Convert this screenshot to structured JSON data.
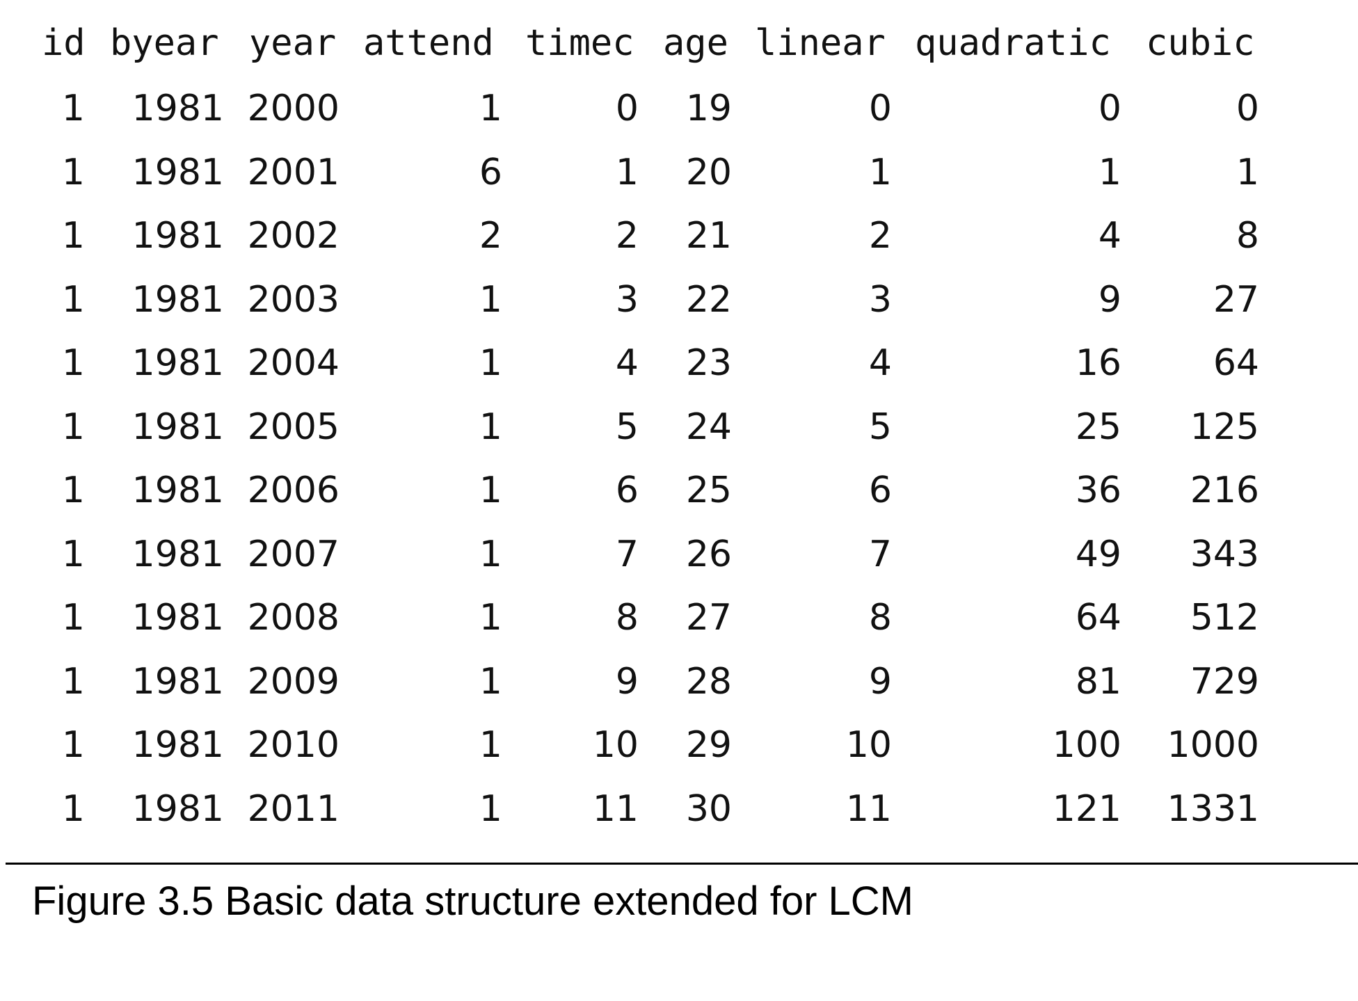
{
  "table": {
    "columns": [
      {
        "key": "id",
        "label": "id"
      },
      {
        "key": "byear",
        "label": "byear"
      },
      {
        "key": "year",
        "label": "year"
      },
      {
        "key": "attend",
        "label": "attend"
      },
      {
        "key": "timec",
        "label": "timec"
      },
      {
        "key": "age",
        "label": "age"
      },
      {
        "key": "linear",
        "label": "linear"
      },
      {
        "key": "quadratic",
        "label": "quadratic"
      },
      {
        "key": "cubic",
        "label": "cubic"
      }
    ],
    "rows": [
      [
        "1",
        "1981",
        "2000",
        "1",
        "0",
        "19",
        "0",
        "0",
        "0"
      ],
      [
        "1",
        "1981",
        "2001",
        "6",
        "1",
        "20",
        "1",
        "1",
        "1"
      ],
      [
        "1",
        "1981",
        "2002",
        "2",
        "2",
        "21",
        "2",
        "4",
        "8"
      ],
      [
        "1",
        "1981",
        "2003",
        "1",
        "3",
        "22",
        "3",
        "9",
        "27"
      ],
      [
        "1",
        "1981",
        "2004",
        "1",
        "4",
        "23",
        "4",
        "16",
        "64"
      ],
      [
        "1",
        "1981",
        "2005",
        "1",
        "5",
        "24",
        "5",
        "25",
        "125"
      ],
      [
        "1",
        "1981",
        "2006",
        "1",
        "6",
        "25",
        "6",
        "36",
        "216"
      ],
      [
        "1",
        "1981",
        "2007",
        "1",
        "7",
        "26",
        "7",
        "49",
        "343"
      ],
      [
        "1",
        "1981",
        "2008",
        "1",
        "8",
        "27",
        "8",
        "64",
        "512"
      ],
      [
        "1",
        "1981",
        "2009",
        "1",
        "9",
        "28",
        "9",
        "81",
        "729"
      ],
      [
        "1",
        "1981",
        "2010",
        "1",
        "10",
        "29",
        "10",
        "100",
        "1000"
      ],
      [
        "1",
        "1981",
        "2011",
        "1",
        "11",
        "30",
        "11",
        "121",
        "1331"
      ]
    ]
  },
  "caption": "Figure 3.5 Basic data structure extended for LCM"
}
